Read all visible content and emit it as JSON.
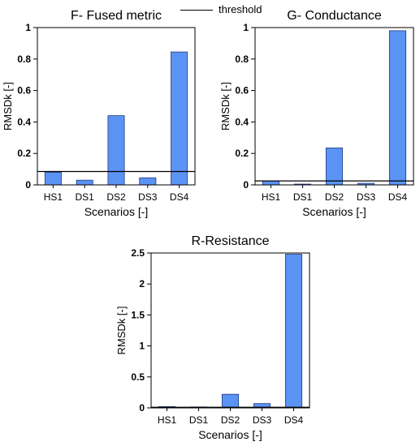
{
  "legend": {
    "threshold_label": "threshold"
  },
  "colors": {
    "bar_fill": "#5b93f5",
    "bar_stroke": "#1f3a7a",
    "threshold_line": "#000000"
  },
  "chart_data": [
    {
      "type": "bar",
      "title": "F- Fused metric",
      "xlabel": "Scenarios [-]",
      "ylabel": "RMSDk [-]",
      "categories": [
        "HS1",
        "DS1",
        "DS2",
        "DS3",
        "DS4"
      ],
      "values": [
        0.08,
        0.03,
        0.44,
        0.045,
        0.845
      ],
      "threshold": 0.085,
      "ylim": [
        0,
        1
      ],
      "yticks": [
        0,
        0.2,
        0.4,
        0.6,
        0.8,
        1
      ],
      "ytick_labels": [
        "0",
        "0.2",
        "0.4",
        "0.6",
        "0.8",
        "1"
      ],
      "grid": false
    },
    {
      "type": "bar",
      "title": "G- Conductance",
      "xlabel": "Scenarios [-]",
      "ylabel": "RMSDk [-]",
      "categories": [
        "HS1",
        "DS1",
        "DS2",
        "DS3",
        "DS4"
      ],
      "values": [
        0.025,
        0.005,
        0.235,
        0.01,
        0.98
      ],
      "threshold": 0.025,
      "ylim": [
        0,
        1
      ],
      "yticks": [
        0,
        0.2,
        0.4,
        0.6,
        0.8,
        1
      ],
      "ytick_labels": [
        "0",
        "0.2",
        "0.4",
        "0.6",
        "0.8",
        "1"
      ],
      "grid": false
    },
    {
      "type": "bar",
      "title": "R-Resistance",
      "xlabel": "Scenarios [-]",
      "ylabel": "RMSDk [-]",
      "categories": [
        "HS1",
        "DS1",
        "DS2",
        "DS3",
        "DS4"
      ],
      "values": [
        0.02,
        0.015,
        0.22,
        0.07,
        2.48
      ],
      "threshold": 0.01,
      "ylim": [
        0,
        2.5
      ],
      "yticks": [
        0,
        0.5,
        1,
        1.5,
        2,
        2.5
      ],
      "ytick_labels": [
        "0",
        "0.5",
        "1",
        "1.5",
        "2",
        "2.5"
      ],
      "grid": false
    }
  ]
}
